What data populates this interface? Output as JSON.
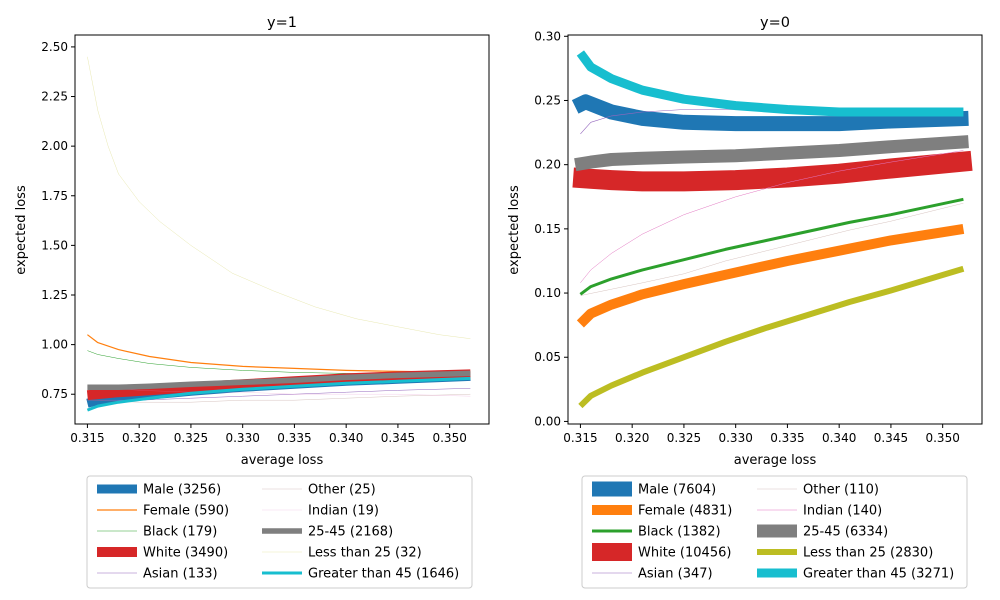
{
  "chart_data": [
    {
      "type": "line",
      "title": "y=1",
      "xlabel": "average loss",
      "ylabel": "expected loss",
      "xlim": [
        0.3138,
        0.3538
      ],
      "ylim": [
        0.6,
        2.56
      ],
      "xticks": [
        0.315,
        0.32,
        0.325,
        0.33,
        0.335,
        0.34,
        0.345,
        0.35
      ],
      "xtick_labels": [
        "0.315",
        "0.320",
        "0.325",
        "0.330",
        "0.335",
        "0.340",
        "0.345",
        "0.350"
      ],
      "yticks": [
        0.75,
        1.0,
        1.25,
        1.5,
        1.75,
        2.0,
        2.25,
        2.5
      ],
      "ytick_labels": [
        "0.75",
        "1.00",
        "1.25",
        "1.50",
        "1.75",
        "2.00",
        "2.25",
        "2.50"
      ],
      "legend_position": "below",
      "series": [
        {
          "name": "Male (3256)",
          "color": "#1f77b4",
          "width": 9.0,
          "x": [
            0.315,
            0.316,
            0.318,
            0.321,
            0.325,
            0.33,
            0.335,
            0.34,
            0.345,
            0.352
          ],
          "y": [
            0.705,
            0.718,
            0.73,
            0.745,
            0.765,
            0.785,
            0.8,
            0.815,
            0.825,
            0.84
          ]
        },
        {
          "name": "Female (590)",
          "color": "#ff7f0e",
          "width": 1.2,
          "x": [
            0.315,
            0.316,
            0.318,
            0.321,
            0.325,
            0.33,
            0.335,
            0.34,
            0.345,
            0.352
          ],
          "y": [
            1.05,
            1.01,
            0.975,
            0.94,
            0.91,
            0.89,
            0.88,
            0.87,
            0.865,
            0.86
          ]
        },
        {
          "name": "Black (179)",
          "color": "#2ca02c",
          "width": 0.5,
          "x": [
            0.315,
            0.316,
            0.318,
            0.321,
            0.325,
            0.33,
            0.335,
            0.34,
            0.345,
            0.352
          ],
          "y": [
            0.97,
            0.95,
            0.93,
            0.905,
            0.885,
            0.87,
            0.86,
            0.855,
            0.85,
            0.85
          ]
        },
        {
          "name": "White (3490)",
          "color": "#d62728",
          "width": 10.0,
          "x": [
            0.315,
            0.316,
            0.318,
            0.321,
            0.325,
            0.33,
            0.335,
            0.34,
            0.345,
            0.352
          ],
          "y": [
            0.745,
            0.75,
            0.76,
            0.77,
            0.785,
            0.8,
            0.815,
            0.83,
            0.84,
            0.85
          ]
        },
        {
          "name": "Asian (133)",
          "color": "#9467bd",
          "width": 0.4,
          "x": [
            0.315,
            0.32,
            0.325,
            0.33,
            0.335,
            0.34,
            0.345,
            0.352
          ],
          "y": [
            0.72,
            0.72,
            0.73,
            0.74,
            0.75,
            0.76,
            0.77,
            0.78
          ]
        },
        {
          "name": "Other (25)",
          "color": "#8c564b",
          "width": 0.1,
          "x": [
            0.315,
            0.32,
            0.325,
            0.33,
            0.335,
            0.34,
            0.345,
            0.352
          ],
          "y": [
            0.72,
            0.71,
            0.71,
            0.72,
            0.72,
            0.73,
            0.74,
            0.75
          ]
        },
        {
          "name": "Indian (19)",
          "color": "#e377c2",
          "width": 0.1,
          "x": [
            0.315,
            0.32,
            0.325,
            0.33,
            0.335,
            0.34,
            0.345,
            0.352
          ],
          "y": [
            0.79,
            0.77,
            0.76,
            0.76,
            0.75,
            0.75,
            0.75,
            0.74
          ]
        },
        {
          "name": "25-45 (2168)",
          "color": "#7f7f7f",
          "width": 5.5,
          "x": [
            0.315,
            0.318,
            0.321,
            0.325,
            0.33,
            0.335,
            0.34,
            0.345,
            0.352
          ],
          "y": [
            0.785,
            0.785,
            0.79,
            0.8,
            0.81,
            0.82,
            0.835,
            0.845,
            0.855
          ]
        },
        {
          "name": "Less than 25 (32)",
          "color": "#bcbd22",
          "width": 0.1,
          "x": [
            0.315,
            0.316,
            0.317,
            0.318,
            0.32,
            0.322,
            0.325,
            0.329,
            0.333,
            0.337,
            0.341,
            0.345,
            0.349,
            0.352
          ],
          "y": [
            2.45,
            2.18,
            2.0,
            1.86,
            1.72,
            1.62,
            1.5,
            1.36,
            1.27,
            1.19,
            1.13,
            1.09,
            1.05,
            1.03
          ]
        },
        {
          "name": "Greater than 45 (1646)",
          "color": "#17becf",
          "width": 3.0,
          "x": [
            0.315,
            0.316,
            0.318,
            0.321,
            0.325,
            0.33,
            0.335,
            0.34,
            0.345,
            0.352
          ],
          "y": [
            0.67,
            0.69,
            0.71,
            0.73,
            0.755,
            0.775,
            0.79,
            0.805,
            0.815,
            0.83
          ]
        }
      ]
    },
    {
      "type": "line",
      "title": "y=0",
      "xlabel": "average loss",
      "ylabel": "expected loss",
      "xlim": [
        0.3138,
        0.3538
      ],
      "ylim": [
        -0.002,
        0.301
      ],
      "xticks": [
        0.315,
        0.32,
        0.325,
        0.33,
        0.335,
        0.34,
        0.345,
        0.35
      ],
      "xtick_labels": [
        "0.315",
        "0.320",
        "0.325",
        "0.330",
        "0.335",
        "0.340",
        "0.345",
        "0.350"
      ],
      "yticks": [
        0.0,
        0.05,
        0.1,
        0.15,
        0.2,
        0.25,
        0.3
      ],
      "ytick_labels": [
        "0.00",
        "0.05",
        "0.10",
        "0.15",
        "0.20",
        "0.25",
        "0.30"
      ],
      "legend_position": "below",
      "series": [
        {
          "name": "Male (7604)",
          "color": "#1f77b4",
          "width": 15.0,
          "x": [
            0.3145,
            0.3155,
            0.318,
            0.321,
            0.325,
            0.33,
            0.335,
            0.34,
            0.345,
            0.3525
          ],
          "y": [
            0.245,
            0.249,
            0.241,
            0.236,
            0.233,
            0.232,
            0.232,
            0.232,
            0.234,
            0.236
          ]
        },
        {
          "name": "Female (4831)",
          "color": "#ff7f0e",
          "width": 10.0,
          "x": [
            0.315,
            0.316,
            0.318,
            0.321,
            0.325,
            0.33,
            0.335,
            0.34,
            0.345,
            0.352
          ],
          "y": [
            0.076,
            0.084,
            0.091,
            0.099,
            0.107,
            0.116,
            0.125,
            0.133,
            0.141,
            0.15
          ]
        },
        {
          "name": "Black (1382)",
          "color": "#2ca02c",
          "width": 3.0,
          "x": [
            0.315,
            0.316,
            0.318,
            0.321,
            0.325,
            0.329,
            0.333,
            0.337,
            0.341,
            0.345,
            0.352
          ],
          "y": [
            0.099,
            0.105,
            0.111,
            0.118,
            0.126,
            0.134,
            0.141,
            0.148,
            0.155,
            0.161,
            0.173
          ]
        },
        {
          "name": "White (10456)",
          "color": "#d62728",
          "width": 20.0,
          "x": [
            0.3143,
            0.316,
            0.318,
            0.321,
            0.325,
            0.33,
            0.335,
            0.34,
            0.345,
            0.3528
          ],
          "y": [
            0.19,
            0.189,
            0.188,
            0.187,
            0.187,
            0.188,
            0.19,
            0.193,
            0.197,
            0.203
          ]
        },
        {
          "name": "Asian (347)",
          "color": "#9467bd",
          "width": 0.6,
          "x": [
            0.315,
            0.316,
            0.318,
            0.321,
            0.325,
            0.33,
            0.335,
            0.34,
            0.345,
            0.352
          ],
          "y": [
            0.224,
            0.233,
            0.238,
            0.241,
            0.243,
            0.243,
            0.243,
            0.242,
            0.243,
            0.243
          ]
        },
        {
          "name": "Other (110)",
          "color": "#8c564b",
          "width": 0.2,
          "x": [
            0.315,
            0.318,
            0.321,
            0.325,
            0.329,
            0.333,
            0.337,
            0.341,
            0.345,
            0.352
          ],
          "y": [
            0.098,
            0.103,
            0.108,
            0.115,
            0.125,
            0.133,
            0.141,
            0.149,
            0.156,
            0.17
          ]
        },
        {
          "name": "Indian (140)",
          "color": "#e377c2",
          "width": 0.4,
          "x": [
            0.315,
            0.316,
            0.318,
            0.321,
            0.325,
            0.33,
            0.335,
            0.34,
            0.345,
            0.352
          ],
          "y": [
            0.108,
            0.118,
            0.131,
            0.146,
            0.161,
            0.175,
            0.186,
            0.195,
            0.202,
            0.211
          ]
        },
        {
          "name": "25-45 (6334)",
          "color": "#7f7f7f",
          "width": 13.0,
          "x": [
            0.3145,
            0.316,
            0.318,
            0.321,
            0.325,
            0.33,
            0.335,
            0.34,
            0.345,
            0.3525
          ],
          "y": [
            0.2,
            0.202,
            0.204,
            0.205,
            0.206,
            0.207,
            0.209,
            0.211,
            0.214,
            0.218
          ]
        },
        {
          "name": "Less than 25 (2830)",
          "color": "#bcbd22",
          "width": 6.0,
          "x": [
            0.315,
            0.316,
            0.318,
            0.321,
            0.325,
            0.329,
            0.333,
            0.337,
            0.341,
            0.345,
            0.352
          ],
          "y": [
            0.012,
            0.02,
            0.028,
            0.038,
            0.05,
            0.062,
            0.073,
            0.083,
            0.093,
            0.102,
            0.119
          ]
        },
        {
          "name": "Greater than 45 (3271)",
          "color": "#17becf",
          "width": 9.0,
          "x": [
            0.315,
            0.316,
            0.318,
            0.321,
            0.325,
            0.33,
            0.335,
            0.34,
            0.345,
            0.352
          ],
          "y": [
            0.287,
            0.276,
            0.267,
            0.258,
            0.251,
            0.246,
            0.243,
            0.241,
            0.241,
            0.241
          ]
        }
      ]
    }
  ]
}
